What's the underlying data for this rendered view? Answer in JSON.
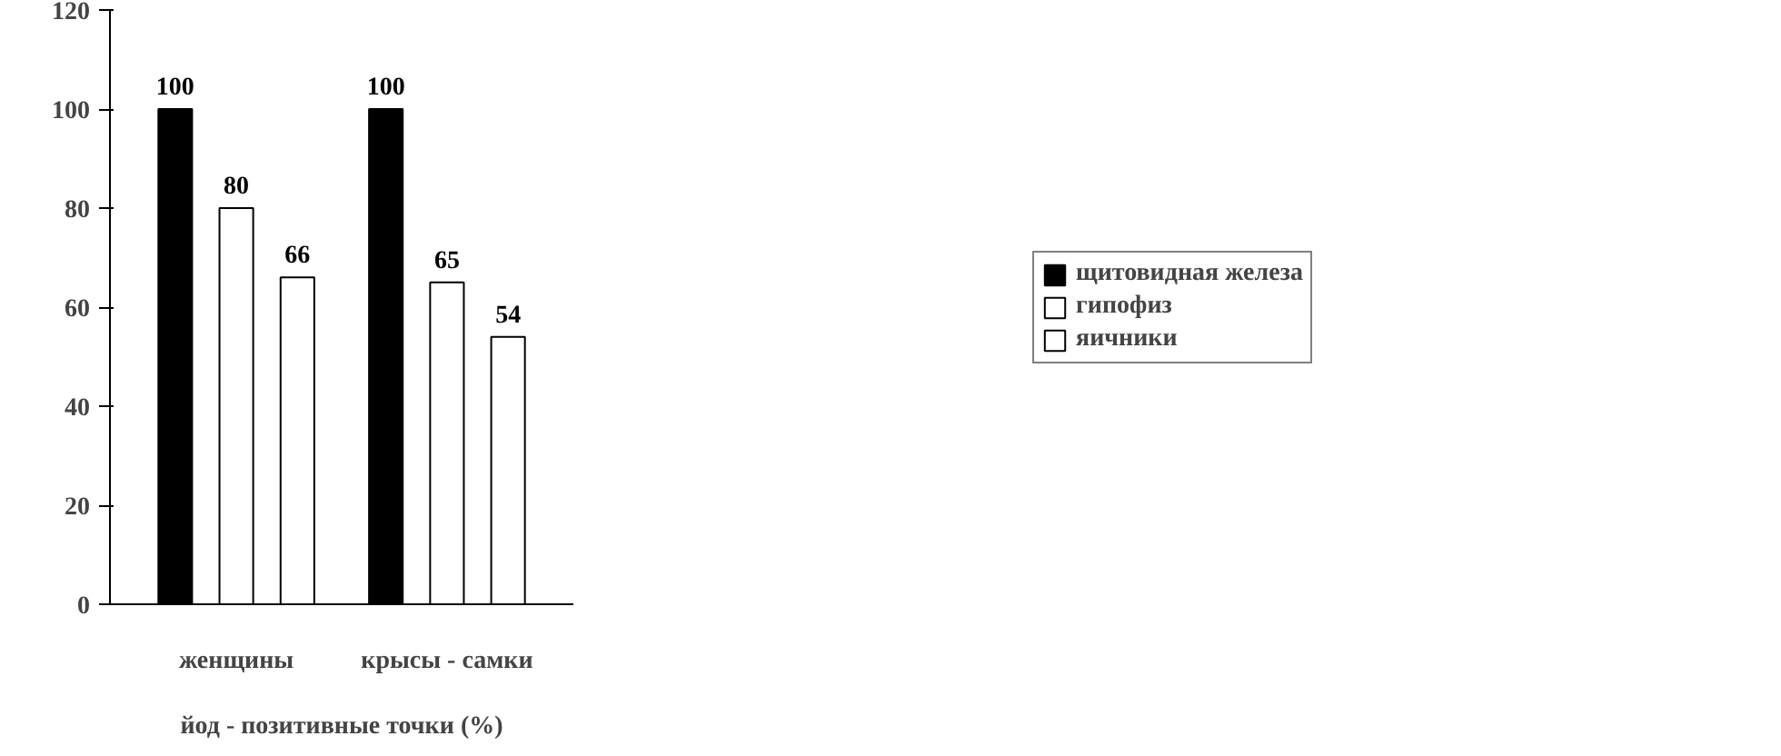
{
  "chart_data": {
    "type": "bar",
    "xlabel": "йод - позитивные точки (%)",
    "categories": [
      "женщины",
      "крысы - самки"
    ],
    "series": [
      {
        "name": "щитовидная железа",
        "color": "#000000",
        "values": [
          100,
          100
        ]
      },
      {
        "name": "гипофиз",
        "color": "#ffffff",
        "values": [
          80,
          65
        ]
      },
      {
        "name": "яичники",
        "color": "#ffffff",
        "values": [
          66,
          54
        ]
      }
    ],
    "ylim": [
      0,
      120
    ],
    "yticks": [
      0,
      20,
      40,
      60,
      80,
      100,
      120
    ],
    "grid": false,
    "legend": "right",
    "data_labels": true
  }
}
